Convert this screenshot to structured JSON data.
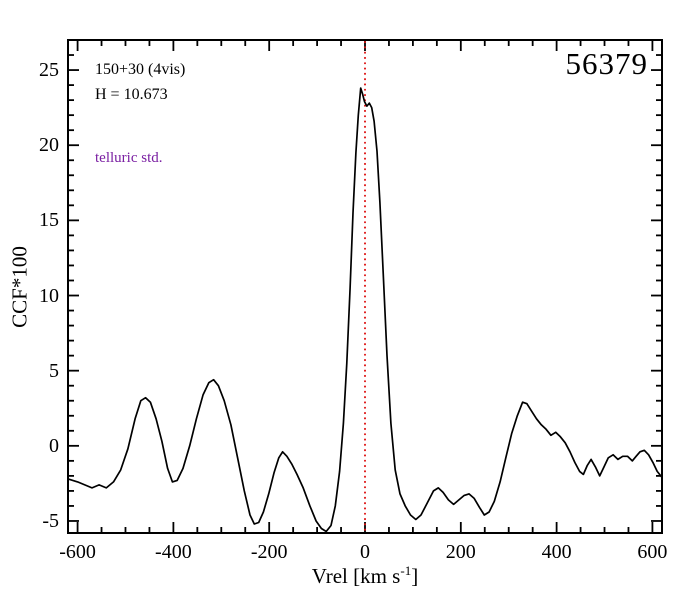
{
  "annotations": {
    "field_line1": "150+30 (4vis)",
    "field_line2": "H = 10.673",
    "telluric": "telluric std.",
    "mjd": "56379"
  },
  "axis": {
    "ylabel": "CCF*100",
    "xlabel_prefix": "Vrel [km s",
    "xlabel_sup": "-1",
    "xlabel_suffix": "]"
  },
  "colors": {
    "curve": "#000000",
    "axis": "#000000",
    "vline": "#dd1111",
    "telluric_text": "#7a1fa2"
  },
  "chart_data": {
    "type": "line",
    "title": "",
    "xlabel": "Vrel [km s^-1]",
    "ylabel": "CCF*100",
    "xlim": [
      -620,
      620
    ],
    "ylim": [
      -5.8,
      27
    ],
    "xticks": [
      -600,
      -400,
      -200,
      0,
      200,
      400,
      600
    ],
    "yticks": [
      -5,
      0,
      5,
      10,
      15,
      20,
      25
    ],
    "x_minor_step": 50,
    "y_minor_step": 1,
    "vline_x": 0,
    "legend": "none",
    "grid": false,
    "series": [
      {
        "name": "ccf",
        "x": [
          -620,
          -600,
          -585,
          -570,
          -555,
          -540,
          -525,
          -510,
          -495,
          -480,
          -468,
          -458,
          -448,
          -436,
          -424,
          -412,
          -402,
          -392,
          -380,
          -366,
          -352,
          -338,
          -326,
          -316,
          -306,
          -294,
          -280,
          -266,
          -252,
          -240,
          -231,
          -222,
          -212,
          -201,
          -190,
          -180,
          -172,
          -163,
          -153,
          -142,
          -129,
          -115,
          -102,
          -91,
          -81,
          -71,
          -62,
          -53,
          -45,
          -38,
          -31,
          -25,
          -19,
          -14,
          -9,
          -5,
          -1,
          4,
          9,
          14,
          19,
          25,
          31,
          38,
          46,
          54,
          63,
          73,
          84,
          95,
          106,
          117,
          130,
          143,
          153,
          163,
          174,
          185,
          196,
          207,
          217,
          228,
          239,
          249,
          259,
          270,
          282,
          294,
          306,
          318,
          329,
          338,
          348,
          358,
          368,
          378,
          388,
          398,
          408,
          418,
          428,
          438,
          448,
          456,
          464,
          472,
          481,
          490,
          499,
          508,
          518,
          528,
          538,
          548,
          558,
          566,
          574,
          583,
          592,
          601,
          610,
          620
        ],
        "y": [
          -2.2,
          -2.4,
          -2.6,
          -2.8,
          -2.6,
          -2.8,
          -2.4,
          -1.6,
          -0.2,
          1.8,
          3.0,
          3.2,
          2.9,
          1.8,
          0.3,
          -1.5,
          -2.4,
          -2.3,
          -1.5,
          0.0,
          1.8,
          3.4,
          4.2,
          4.4,
          4.0,
          3.0,
          1.4,
          -0.8,
          -3.0,
          -4.6,
          -5.2,
          -5.1,
          -4.4,
          -3.2,
          -1.8,
          -0.8,
          -0.4,
          -0.7,
          -1.2,
          -1.9,
          -2.8,
          -4.0,
          -5.0,
          -5.5,
          -5.7,
          -5.3,
          -4.0,
          -1.7,
          1.5,
          5.5,
          10.5,
          15.5,
          19.5,
          22.0,
          23.8,
          23.4,
          22.9,
          22.6,
          22.8,
          22.5,
          21.6,
          19.6,
          16.2,
          11.5,
          6.0,
          1.5,
          -1.6,
          -3.2,
          -4.0,
          -4.6,
          -4.9,
          -4.6,
          -3.8,
          -3.0,
          -2.8,
          -3.1,
          -3.6,
          -3.9,
          -3.6,
          -3.3,
          -3.2,
          -3.5,
          -4.1,
          -4.6,
          -4.4,
          -3.7,
          -2.4,
          -0.8,
          0.8,
          2.0,
          2.9,
          2.8,
          2.3,
          1.8,
          1.4,
          1.1,
          0.7,
          0.9,
          0.6,
          0.2,
          -0.4,
          -1.1,
          -1.7,
          -1.9,
          -1.3,
          -0.9,
          -1.4,
          -2.0,
          -1.4,
          -0.8,
          -0.6,
          -0.9,
          -0.7,
          -0.7,
          -1.0,
          -0.7,
          -0.4,
          -0.3,
          -0.6,
          -1.1,
          -1.7,
          -2.1
        ]
      }
    ]
  }
}
